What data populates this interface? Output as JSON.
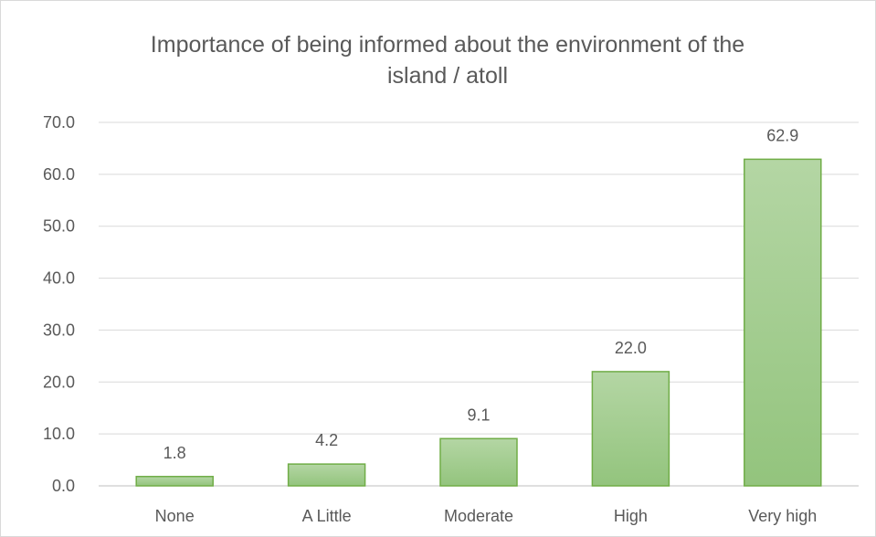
{
  "chart_data": {
    "type": "bar",
    "title_lines": [
      "Importance of being informed about the environment of the",
      "island / atoll"
    ],
    "categories": [
      "None",
      "A Little",
      "Moderate",
      "High",
      "Very high"
    ],
    "values": [
      1.8,
      4.2,
      9.1,
      22.0,
      62.9
    ],
    "data_labels": [
      "1.8",
      "4.2",
      "9.1",
      "22.0",
      "62.9"
    ],
    "ylim": [
      0,
      70
    ],
    "y_ticks": [
      "0.0",
      "10.0",
      "20.0",
      "30.0",
      "40.0",
      "50.0",
      "60.0",
      "70.0"
    ],
    "grid": true,
    "bar_color_top": "#b4d6a4",
    "bar_color_bottom": "#93c47d",
    "bar_border_color": "#70ad47"
  }
}
